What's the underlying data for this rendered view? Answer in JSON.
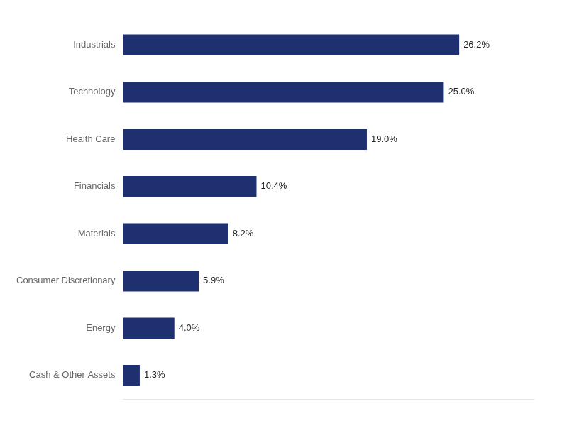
{
  "chart_data": {
    "type": "bar",
    "orientation": "horizontal",
    "categories": [
      "Industrials",
      "Technology",
      "Health Care",
      "Financials",
      "Materials",
      "Consumer Discretionary",
      "Energy",
      "Cash & Other Assets"
    ],
    "values": [
      26.2,
      25.0,
      19.0,
      10.4,
      8.2,
      5.9,
      4.0,
      1.3
    ],
    "value_labels": [
      "26.2%",
      "25.0%",
      "19.0%",
      "10.4%",
      "8.2%",
      "5.9%",
      "4.0%",
      "1.3%"
    ],
    "data_labels": true,
    "color": "#1F3070",
    "xlim": [
      0,
      32
    ],
    "tick_labels": "y",
    "grid": false
  }
}
